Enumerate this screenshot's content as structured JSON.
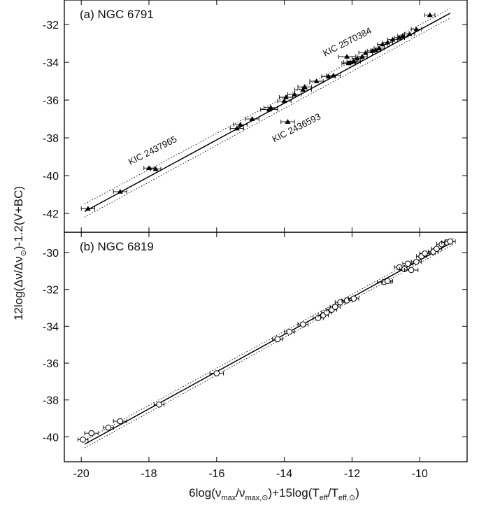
{
  "figure": {
    "ylabel_parts": [
      "12log(Δν/Δν",
      "⊙",
      ")-1.2(V+BC)"
    ],
    "xlabel_parts": [
      "6log(ν",
      "max",
      "/ν",
      "max,⊙",
      ")+15log(T",
      "eff",
      "/T",
      "eff,⊙",
      ")"
    ]
  },
  "chart_data": [
    {
      "type": "scatter",
      "title": "(a) NGC 6791",
      "marker": "filled-triangle",
      "xlim": [
        -20.5,
        -8.6
      ],
      "ylim": [
        -43.0,
        -30.7
      ],
      "x_ticks": [
        -20,
        -18,
        -16,
        -14,
        -12,
        -10
      ],
      "y_ticks": [
        -42,
        -40,
        -38,
        -36,
        -34,
        -32
      ],
      "y_tick_labels": [
        "-42",
        "-40",
        "-38",
        "-36",
        "-34",
        "-32"
      ],
      "fit": {
        "x": [
          -19.9,
          -9.1
        ],
        "y": [
          -41.9,
          -31.4
        ],
        "style": "solid"
      },
      "band_upper": {
        "x": [
          -19.9,
          -9.1
        ],
        "y": [
          -41.5,
          -31.15
        ],
        "style": "dotted"
      },
      "band_lower": {
        "x": [
          -19.9,
          -9.1
        ],
        "y": [
          -42.2,
          -31.65
        ],
        "style": "dotted"
      },
      "points": {
        "x": [
          -19.8,
          -18.85,
          -18.0,
          -17.8,
          -15.4,
          -15.3,
          -14.95,
          -14.45,
          -14.4,
          -14.0,
          -13.95,
          -13.7,
          -13.45,
          -13.4,
          -13.05,
          -12.7,
          -12.55,
          -12.15,
          -12.1,
          -12.05,
          -11.95,
          -11.85,
          -11.7,
          -11.6,
          -11.4,
          -11.3,
          -11.2,
          -11.1,
          -10.95,
          -10.8,
          -10.6,
          -10.5,
          -10.3,
          -10.1,
          -9.7,
          -13.9
        ],
        "y": [
          -41.75,
          -40.85,
          -39.6,
          -39.65,
          -37.5,
          -37.3,
          -37.0,
          -36.5,
          -36.4,
          -36.05,
          -35.85,
          -35.7,
          -35.45,
          -35.3,
          -35.0,
          -34.75,
          -34.7,
          -33.7,
          -34.05,
          -34.0,
          -33.95,
          -33.8,
          -33.7,
          -33.5,
          -33.4,
          -33.35,
          -33.25,
          -33.05,
          -32.95,
          -32.8,
          -32.7,
          -32.6,
          -32.5,
          -32.25,
          -31.5,
          -37.15
        ],
        "x_err": [
          0.2,
          0.2,
          0.15,
          0.15,
          0.2,
          0.2,
          0.2,
          0.25,
          0.2,
          0.2,
          0.2,
          0.2,
          0.25,
          0.2,
          0.2,
          0.2,
          0.2,
          0.25,
          0.2,
          0.2,
          0.2,
          0.15,
          0.15,
          0.2,
          0.15,
          0.15,
          0.15,
          0.15,
          0.15,
          0.15,
          0.15,
          0.15,
          0.15,
          0.15,
          0.15,
          0.2
        ]
      },
      "annotations": [
        {
          "text": "KIC 2570384",
          "x": -12.8,
          "y": -33.7,
          "rotate": -27
        },
        {
          "text": "KIC 2437965",
          "x": -18.55,
          "y": -39.45,
          "rotate": -27
        },
        {
          "text": "KIC 2436593",
          "x": -14.3,
          "y": -38.25,
          "rotate": -27
        }
      ]
    },
    {
      "type": "scatter",
      "title": "(b) NGC 6819",
      "marker": "open-circle",
      "xlim": [
        -20.5,
        -8.6
      ],
      "ylim": [
        -41.35,
        -28.9
      ],
      "x_ticks": [
        -20,
        -18,
        -16,
        -14,
        -12,
        -10
      ],
      "x_tick_labels": [
        "-20",
        "-18",
        "-16",
        "-14",
        "-12",
        "-10"
      ],
      "y_ticks": [
        -40,
        -38,
        -36,
        -34,
        -32,
        -30
      ],
      "y_tick_labels": [
        "-40",
        "-38",
        "-36",
        "-34",
        "-32",
        "-30"
      ],
      "fit": {
        "x": [
          -19.9,
          -9.0
        ],
        "y": [
          -40.4,
          -29.4
        ],
        "style": "solid"
      },
      "band_upper": {
        "x": [
          -19.9,
          -9.0
        ],
        "y": [
          -40.2,
          -29.25
        ],
        "style": "dotted"
      },
      "band_lower": {
        "x": [
          -19.9,
          -9.0
        ],
        "y": [
          -40.6,
          -29.55
        ],
        "style": "dotted"
      },
      "points": {
        "x": [
          -19.95,
          -19.7,
          -19.2,
          -18.85,
          -17.7,
          -16.0,
          -14.2,
          -13.85,
          -13.45,
          -13.0,
          -12.85,
          -12.75,
          -12.6,
          -12.5,
          -12.35,
          -12.15,
          -11.95,
          -11.05,
          -10.95,
          -10.6,
          -10.45,
          -10.35,
          -10.25,
          -10.1,
          -9.95,
          -9.85,
          -9.6,
          -9.5,
          -9.35,
          -9.2,
          -9.1
        ],
        "y": [
          -40.15,
          -39.8,
          -39.5,
          -39.15,
          -38.25,
          -36.55,
          -34.7,
          -34.3,
          -33.9,
          -33.55,
          -33.4,
          -33.25,
          -33.1,
          -32.95,
          -32.7,
          -32.6,
          -32.5,
          -31.6,
          -31.55,
          -30.8,
          -30.9,
          -30.6,
          -30.95,
          -30.5,
          -30.2,
          -30.05,
          -29.95,
          -29.8,
          -29.55,
          -29.45,
          -29.4
        ],
        "x_err": [
          0.15,
          0.2,
          0.15,
          0.2,
          0.15,
          0.2,
          0.15,
          0.15,
          0.15,
          0.15,
          0.15,
          0.15,
          0.15,
          0.15,
          0.15,
          0.15,
          0.15,
          0.2,
          0.15,
          0.15,
          0.15,
          0.15,
          0.2,
          0.15,
          0.15,
          0.15,
          0.15,
          0.15,
          0.15,
          0.15,
          0.15
        ]
      }
    }
  ]
}
